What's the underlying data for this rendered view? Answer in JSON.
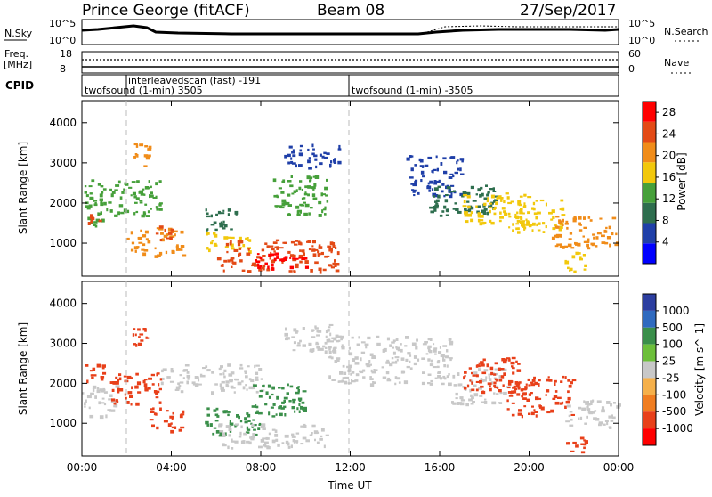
{
  "header": {
    "station": "Prince George (fitACF)",
    "beam": "Beam 08",
    "date": "27/Sep/2017"
  },
  "top_panel": {
    "nsky_label": "N.Sky",
    "nsky_top": "10^5",
    "nsky_bottom": "10^0",
    "nsearch_label": "N.Search",
    "nsearch_top": "10^5",
    "nsearch_bottom": "10^0",
    "freq_label": "Freq.",
    "freq_unit": "[MHz]",
    "freq_top": "18",
    "freq_bottom": "8",
    "nave_label": "Nave",
    "nave_top": "60",
    "nave_bottom": "0",
    "cpid_label": "CPID",
    "cpid_entries": [
      {
        "label": "interleavedscan (fast) -191",
        "start_hour": 2.0
      },
      {
        "label": "twofsound (1-min) 3505",
        "start_hour": 0.0
      },
      {
        "label": "twofsound (1-min) -3505",
        "start_hour": 12.0
      }
    ]
  },
  "chart_data": [
    {
      "type": "heatmap",
      "name": "power",
      "xlabel": "",
      "ylabel": "Slant Range [km]",
      "xlim": [
        0,
        24
      ],
      "ylim": [
        180,
        4550
      ],
      "x_ticks": [
        "00:00",
        "04:00",
        "08:00",
        "12:00",
        "16:00",
        "20:00",
        "00:00"
      ],
      "y_ticks": [
        1000,
        2000,
        3000,
        4000
      ],
      "colorbar": {
        "label": "Power [dB]",
        "ticks": [
          4,
          8,
          12,
          16,
          20,
          24,
          28
        ],
        "range": [
          0,
          30
        ]
      },
      "regions": [
        {
          "x": [
            0.0,
            1.2
          ],
          "y": [
            1400,
            2600
          ],
          "value": 12
        },
        {
          "x": [
            0.2,
            0.9
          ],
          "y": [
            1500,
            1800
          ],
          "value": 24
        },
        {
          "x": [
            1.2,
            3.5
          ],
          "y": [
            1700,
            2600
          ],
          "value": 12
        },
        {
          "x": [
            2.2,
            3.0
          ],
          "y": [
            2900,
            3500
          ],
          "value": 20
        },
        {
          "x": [
            2.0,
            4.5
          ],
          "y": [
            700,
            1400
          ],
          "value": 20
        },
        {
          "x": [
            3.3,
            4.0
          ],
          "y": [
            1050,
            1450
          ],
          "value": 26
        },
        {
          "x": [
            5.5,
            7.0
          ],
          "y": [
            1300,
            1900
          ],
          "value": 10
        },
        {
          "x": [
            5.5,
            7.5
          ],
          "y": [
            800,
            1300
          ],
          "value": 18
        },
        {
          "x": [
            6.0,
            11.5
          ],
          "y": [
            300,
            1100
          ],
          "value": 24
        },
        {
          "x": [
            7.5,
            10.0
          ],
          "y": [
            350,
            800
          ],
          "value": 30
        },
        {
          "x": [
            8.5,
            11.0
          ],
          "y": [
            1700,
            2700
          ],
          "value": 14
        },
        {
          "x": [
            9.0,
            11.5
          ],
          "y": [
            2900,
            3500
          ],
          "value": 6
        },
        {
          "x": [
            14.5,
            17.0
          ],
          "y": [
            2200,
            3200
          ],
          "value": 6
        },
        {
          "x": [
            15.5,
            18.5
          ],
          "y": [
            1700,
            2500
          ],
          "value": 10
        },
        {
          "x": [
            17.0,
            20.0
          ],
          "y": [
            1500,
            2300
          ],
          "value": 18
        },
        {
          "x": [
            19.0,
            21.5
          ],
          "y": [
            1300,
            2100
          ],
          "value": 18
        },
        {
          "x": [
            21.0,
            24.0
          ],
          "y": [
            900,
            1700
          ],
          "value": 20
        },
        {
          "x": [
            21.5,
            22.5
          ],
          "y": [
            300,
            800
          ],
          "value": 16
        }
      ]
    },
    {
      "type": "heatmap",
      "name": "velocity",
      "xlabel": "Time UT",
      "ylabel": "Slant Range [km]",
      "xlim": [
        0,
        24
      ],
      "ylim": [
        180,
        4550
      ],
      "x_ticks": [
        "00:00",
        "04:00",
        "08:00",
        "12:00",
        "16:00",
        "20:00",
        "00:00"
      ],
      "y_ticks": [
        1000,
        2000,
        3000,
        4000
      ],
      "colorbar": {
        "label": "Velocity [m s^-1]",
        "ticks": [
          "1000",
          "500",
          "100",
          "25",
          "-25",
          "-100",
          "-500",
          "-1000"
        ]
      },
      "regions": [
        {
          "x": [
            0.0,
            1.5
          ],
          "y": [
            1200,
            2000
          ],
          "value": 0
        },
        {
          "x": [
            0.1,
            1.0
          ],
          "y": [
            2000,
            2500
          ],
          "value": -300
        },
        {
          "x": [
            1.2,
            3.5
          ],
          "y": [
            1500,
            2300
          ],
          "value": -300
        },
        {
          "x": [
            2.2,
            3.0
          ],
          "y": [
            2900,
            3500
          ],
          "value": -300
        },
        {
          "x": [
            3.0,
            4.5
          ],
          "y": [
            800,
            1400
          ],
          "value": -300
        },
        {
          "x": [
            3.5,
            8.0
          ],
          "y": [
            1800,
            2500
          ],
          "value": 0
        },
        {
          "x": [
            5.5,
            8.0
          ],
          "y": [
            700,
            1400
          ],
          "value": 150
        },
        {
          "x": [
            6.0,
            11.0
          ],
          "y": [
            400,
            1000
          ],
          "value": 0
        },
        {
          "x": [
            7.5,
            10.0
          ],
          "y": [
            1200,
            2000
          ],
          "value": 150
        },
        {
          "x": [
            9.0,
            11.5
          ],
          "y": [
            2800,
            3500
          ],
          "value": 0
        },
        {
          "x": [
            11.0,
            16.5
          ],
          "y": [
            2000,
            3200
          ],
          "value": 0
        },
        {
          "x": [
            16.5,
            19.0
          ],
          "y": [
            1500,
            2400
          ],
          "value": 0
        },
        {
          "x": [
            17.0,
            19.5
          ],
          "y": [
            1800,
            2700
          ],
          "value": -300
        },
        {
          "x": [
            19.0,
            22.0
          ],
          "y": [
            1200,
            2200
          ],
          "value": -700
        },
        {
          "x": [
            21.5,
            24.0
          ],
          "y": [
            900,
            1600
          ],
          "value": 0
        },
        {
          "x": [
            21.5,
            22.5
          ],
          "y": [
            300,
            800
          ],
          "value": -300
        }
      ]
    }
  ],
  "colors": {
    "power_scale": [
      "#0000ff",
      "#1f3fa8",
      "#2e6e4e",
      "#46a03a",
      "#f2c80c",
      "#f08c19",
      "#e34a16",
      "#ff0000"
    ],
    "velocity_scale": [
      "#2c3ea0",
      "#2f6abf",
      "#3a8f4a",
      "#6cbf3a",
      "#c8c8c8",
      "#f5b04a",
      "#f07d20",
      "#e8401a",
      "#ff0000"
    ]
  }
}
